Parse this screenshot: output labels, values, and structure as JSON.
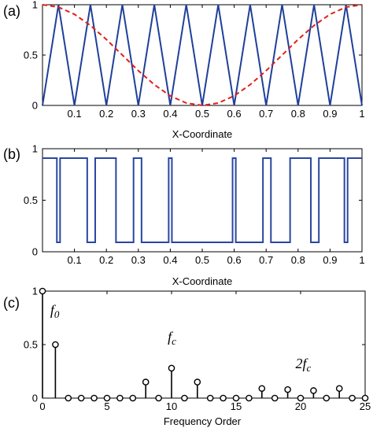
{
  "colors": {
    "triangle": "#1f3f99",
    "cosine": "#e0201b",
    "pulse": "#2a46a0",
    "stem": "#000000"
  },
  "chart_data": [
    {
      "panel": "(a)",
      "type": "line",
      "xlabel": "X-Coordinate",
      "xlim": [
        0,
        1
      ],
      "ylim": [
        0,
        1
      ],
      "xticks": [
        "0.1",
        "0.2",
        "0.3",
        "0.4",
        "0.5",
        "0.6",
        "0.7",
        "0.8",
        "0.9",
        "1"
      ],
      "xtick_values": [
        0.1,
        0.2,
        0.3,
        0.4,
        0.5,
        0.6,
        0.7,
        0.8,
        0.9,
        1.0
      ],
      "yticks": [
        "0",
        "0.5",
        "1"
      ],
      "ytick_values": [
        0,
        0.5,
        1
      ],
      "series": [
        {
          "style": "solid",
          "x": [
            0,
            0.05,
            0.1,
            0.15,
            0.2,
            0.25,
            0.3,
            0.35,
            0.4,
            0.45,
            0.5,
            0.55,
            0.6,
            0.65,
            0.7,
            0.75,
            0.8,
            0.85,
            0.9,
            0.95,
            1.0
          ],
          "y": [
            0,
            1,
            0,
            1,
            0,
            1,
            0,
            1,
            0,
            1,
            0,
            1,
            0,
            1,
            0,
            1,
            0,
            1,
            0,
            1,
            0
          ]
        },
        {
          "style": "dashed",
          "x": [
            0,
            0.05,
            0.1,
            0.15,
            0.2,
            0.25,
            0.3,
            0.35,
            0.4,
            0.45,
            0.5,
            0.55,
            0.6,
            0.65,
            0.7,
            0.75,
            0.8,
            0.85,
            0.9,
            0.95,
            1.0
          ],
          "y": [
            1,
            0.976,
            0.905,
            0.794,
            0.655,
            0.5,
            0.345,
            0.206,
            0.095,
            0.024,
            0,
            0.024,
            0.095,
            0.206,
            0.345,
            0.5,
            0.655,
            0.794,
            0.905,
            0.976,
            1
          ]
        }
      ]
    },
    {
      "panel": "(b)",
      "type": "line",
      "step": true,
      "xlabel": "X-Coordinate",
      "xlim": [
        0,
        1
      ],
      "ylim": [
        0,
        1
      ],
      "xticks": [
        "0.1",
        "0.2",
        "0.3",
        "0.4",
        "0.5",
        "0.6",
        "0.7",
        "0.8",
        "0.9",
        "1"
      ],
      "xtick_values": [
        0.1,
        0.2,
        0.3,
        0.4,
        0.5,
        0.6,
        0.7,
        0.8,
        0.9,
        1.0
      ],
      "yticks": [
        "0",
        "0.5",
        "1"
      ],
      "ytick_values": [
        0,
        0.5,
        1
      ],
      "high_intervals": [
        [
          0,
          0.045
        ],
        [
          0.055,
          0.14
        ],
        [
          0.165,
          0.23
        ],
        [
          0.285,
          0.31
        ],
        [
          0.395,
          0.405
        ],
        [
          0.595,
          0.605
        ],
        [
          0.69,
          0.715
        ],
        [
          0.775,
          0.84
        ],
        [
          0.865,
          0.945
        ],
        [
          0.955,
          1.0
        ]
      ]
    },
    {
      "panel": "(c)",
      "type": "stem",
      "xlabel": "Frequency Order",
      "xlim": [
        0,
        25
      ],
      "ylim": [
        0,
        1
      ],
      "xticks": [
        "0",
        "5",
        "10",
        "15",
        "20",
        "25"
      ],
      "xtick_values": [
        0,
        5,
        10,
        15,
        20,
        25
      ],
      "yticks": [
        "0",
        "0.5",
        "1"
      ],
      "ytick_values": [
        0,
        0.5,
        1
      ],
      "x": [
        0,
        1,
        2,
        3,
        4,
        5,
        6,
        7,
        8,
        9,
        10,
        11,
        12,
        13,
        14,
        15,
        16,
        17,
        18,
        19,
        20,
        21,
        22,
        23,
        24,
        25
      ],
      "values": [
        1.0,
        0.5,
        0,
        0,
        0,
        0,
        0,
        0,
        0.15,
        0,
        0.28,
        0,
        0.15,
        0,
        0,
        0,
        0,
        0.09,
        0,
        0.08,
        0,
        0.07,
        0,
        0.09,
        0,
        0
      ],
      "annotations": [
        {
          "text": "f0",
          "x": 0.6,
          "y": 0.78
        },
        {
          "text": "fc",
          "x": 9.7,
          "y": 0.53
        },
        {
          "text": "2fc",
          "x": 19.6,
          "y": 0.28
        }
      ]
    }
  ]
}
